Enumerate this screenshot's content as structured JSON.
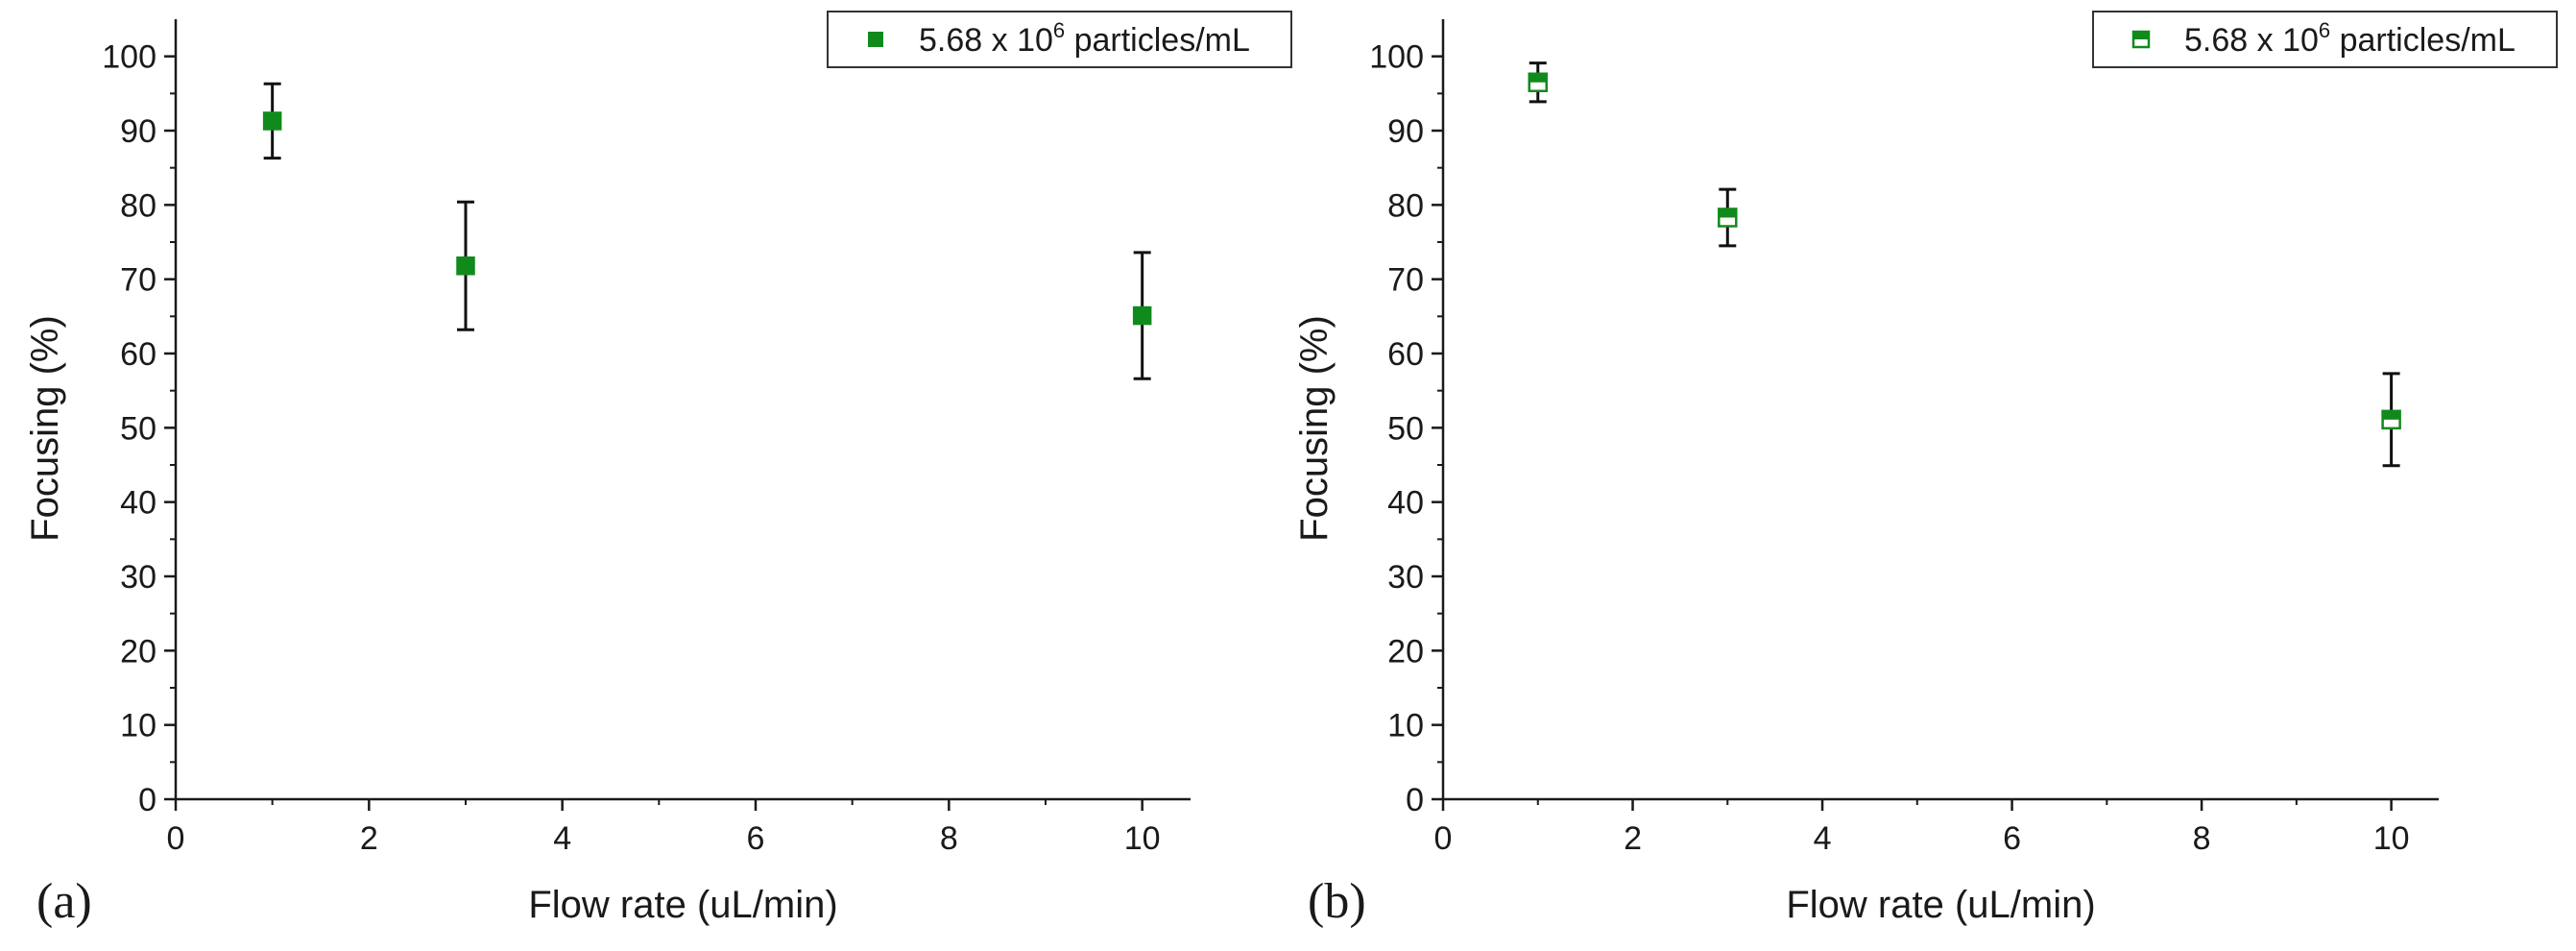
{
  "chart_data": [
    {
      "type": "scatter",
      "panel_label": "(a)",
      "title": "",
      "xlabel": "Flow rate (uL/min)",
      "ylabel": "Focusing (%)",
      "xlim": [
        0,
        10.5
      ],
      "ylim": [
        0,
        105
      ],
      "xticks": [
        0,
        2,
        4,
        6,
        8,
        10
      ],
      "xtick_labels": [
        "0",
        "2",
        "4",
        "6",
        "8",
        "10"
      ],
      "yticks": [
        0,
        10,
        20,
        30,
        40,
        50,
        60,
        70,
        80,
        90,
        100
      ],
      "ytick_labels": [
        "0",
        "10",
        "20",
        "30",
        "40",
        "50",
        "60",
        "70",
        "80",
        "90",
        "100"
      ],
      "grid": false,
      "legend_position": "top-right",
      "series": [
        {
          "name": "5.68 x 10^6 particles/mL",
          "legend_prefix": "5.68 x 10",
          "legend_exponent": "6",
          "legend_suffix": " particles/mL",
          "marker": "filled-square",
          "color": "#118a1c",
          "x": [
            1,
            3,
            10
          ],
          "y": [
            91.3,
            71.8,
            65.1
          ],
          "yerr": [
            5.0,
            8.6,
            8.5
          ]
        }
      ]
    },
    {
      "type": "scatter",
      "panel_label": "(b)",
      "title": "",
      "xlabel": "Flow rate (uL/min)",
      "ylabel": "Focusing (%)",
      "xlim": [
        0,
        10.5
      ],
      "ylim": [
        0,
        105
      ],
      "xticks": [
        0,
        2,
        4,
        6,
        8,
        10
      ],
      "xtick_labels": [
        "0",
        "2",
        "4",
        "6",
        "8",
        "10"
      ],
      "yticks": [
        0,
        10,
        20,
        30,
        40,
        50,
        60,
        70,
        80,
        90,
        100
      ],
      "ytick_labels": [
        "0",
        "10",
        "20",
        "30",
        "40",
        "50",
        "60",
        "70",
        "80",
        "90",
        "100"
      ],
      "grid": false,
      "legend_position": "top-right",
      "series": [
        {
          "name": "5.68 x 10^6 particles/mL",
          "legend_prefix": "5.68 x 10",
          "legend_exponent": "6",
          "legend_suffix": " particles/mL",
          "marker": "half-filled-square",
          "color": "#118a1c",
          "x": [
            1,
            3,
            10
          ],
          "y": [
            96.5,
            78.3,
            51.1
          ],
          "yerr": [
            2.6,
            3.8,
            6.2
          ]
        }
      ]
    }
  ]
}
